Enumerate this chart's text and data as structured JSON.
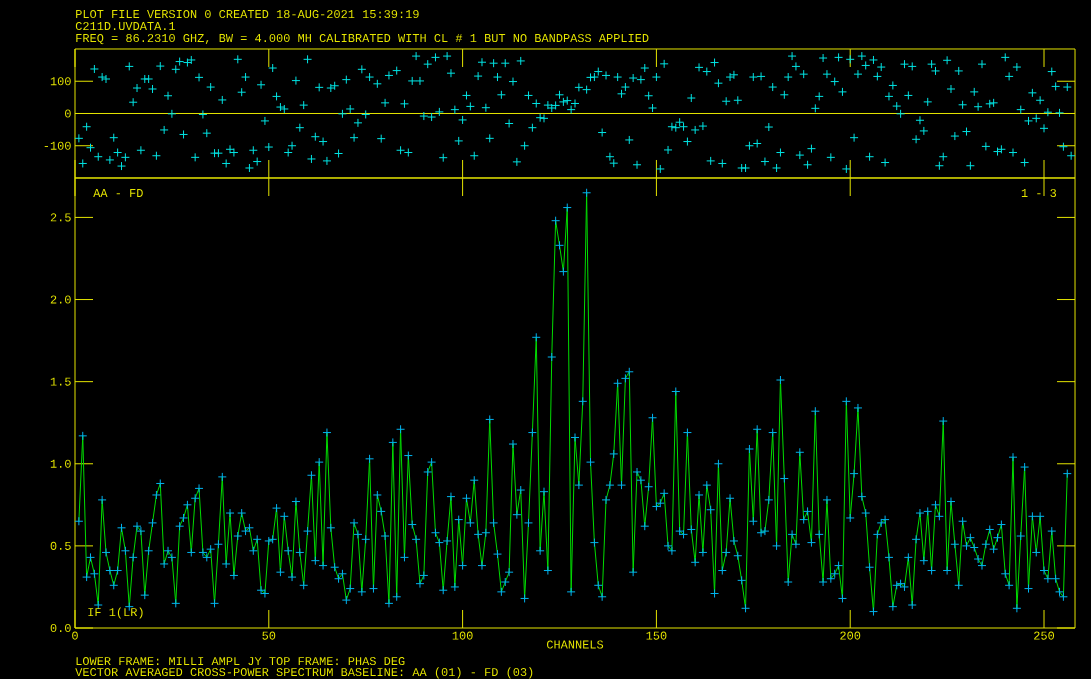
{
  "chart_data": [
    {
      "type": "scatter",
      "annotations": [
        "PLOT FILE VERSION 0 CREATED 18-AUG-2021 15:39:19",
        "C211D.UVDATA.1",
        "FREQ = 86.2310 GHZ, BW = 4.000 MH CALIBRATED WITH CL # 1 BUT NO BANDPASS APPLIED"
      ],
      "xlim": [
        0,
        258
      ],
      "ylim": [
        -200,
        200
      ],
      "xticks": [
        0,
        50,
        100,
        150,
        200,
        250
      ],
      "yticks": [
        -100,
        0,
        100
      ],
      "tick_labels": "y",
      "marker": "cross",
      "ref_lines": [
        {
          "axis": "y",
          "value": 0,
          "color": "#e6e600"
        }
      ],
      "color": "#00e5e5",
      "x": [
        1,
        2,
        3,
        4,
        5,
        6,
        7,
        8,
        9,
        10,
        11,
        12,
        13,
        14,
        15,
        16,
        17,
        18,
        19,
        20,
        21,
        22,
        23,
        24,
        25,
        26,
        27,
        28,
        29,
        30,
        31,
        32,
        33,
        34,
        35,
        36,
        37,
        38,
        39,
        40,
        41,
        42,
        43,
        44,
        45,
        46,
        47,
        48,
        49,
        50,
        51,
        52,
        53,
        54,
        55,
        56,
        57,
        58,
        59,
        60,
        61,
        62,
        63,
        64,
        65,
        66,
        67,
        68,
        69,
        70,
        71,
        72,
        73,
        74,
        75,
        76,
        78,
        79,
        80,
        81,
        83,
        84,
        85,
        86,
        87,
        88,
        89,
        90,
        91,
        92,
        93,
        94,
        95,
        96,
        97,
        98,
        99,
        100,
        101,
        102,
        103,
        104,
        105,
        106,
        107,
        108,
        109,
        110,
        111,
        112,
        113,
        114,
        115,
        116,
        117,
        118,
        119,
        120,
        121,
        122,
        123,
        124,
        125,
        126,
        127,
        128,
        129,
        130,
        132,
        133,
        134,
        135,
        136,
        137,
        138,
        139,
        140,
        141,
        142,
        143,
        144,
        145,
        146,
        147,
        148,
        149,
        150,
        151,
        152,
        153,
        154,
        155,
        156,
        157,
        158,
        159,
        160,
        161,
        162,
        163,
        164,
        165,
        166,
        167,
        168,
        169,
        170,
        171,
        172,
        173,
        174,
        175,
        176,
        177,
        178,
        179,
        180,
        181,
        182,
        183,
        184,
        185,
        186,
        187,
        188,
        189,
        190,
        191,
        192,
        193,
        194,
        195,
        196,
        197,
        198,
        199,
        200,
        201,
        202,
        203,
        204,
        205,
        206,
        207,
        208,
        209,
        210,
        211,
        212,
        213,
        214,
        215,
        216,
        217,
        218,
        219,
        220,
        221,
        222,
        223,
        224,
        225,
        226,
        227,
        228,
        229,
        230,
        231,
        232,
        233,
        234,
        235,
        236,
        237,
        238,
        239,
        240,
        241,
        242,
        243,
        244,
        245,
        246,
        247,
        248,
        249,
        250,
        251,
        252,
        253,
        254,
        255,
        256,
        257
      ],
      "values": [
        -77,
        -155,
        -41,
        -106,
        138,
        -134,
        113,
        107,
        -144,
        -75,
        -121,
        -163,
        -136,
        146,
        35,
        79,
        -114,
        107,
        107,
        76,
        -131,
        147,
        -51,
        55,
        -1,
        137,
        161,
        -65,
        158,
        166,
        -136,
        112,
        -3,
        -61,
        82,
        -123,
        -123,
        42,
        -155,
        -111,
        -121,
        168,
        66,
        113,
        -169,
        -114,
        -149,
        89,
        -23,
        -104,
        141,
        53,
        20,
        14,
        -121,
        -100,
        102,
        -44,
        26,
        168,
        -141,
        -72,
        81,
        -87,
        -147,
        79,
        86,
        -124,
        -1,
        105,
        14,
        -75,
        -29,
        137,
        -3,
        113,
        92,
        -78,
        33,
        118,
        133,
        -114,
        30,
        -121,
        101,
        178,
        101,
        -8,
        153,
        -11,
        174,
        5,
        -137,
        178,
        125,
        12,
        -85,
        -20,
        56,
        22,
        -131,
        116,
        159,
        18,
        -77,
        156,
        113,
        58,
        156,
        -31,
        99,
        -150,
        163,
        -100,
        56,
        -44,
        31,
        -13,
        -15,
        26,
        17,
        25,
        58,
        36,
        40,
        12,
        31,
        81,
        74,
        112,
        113,
        130,
        -59,
        118,
        -134,
        -154,
        113,
        61,
        82,
        -82,
        110,
        -159,
        105,
        141,
        55,
        17,
        113,
        -172,
        154,
        -113,
        -41,
        -44,
        -27,
        -41,
        -87,
        48,
        -51,
        143,
        -39,
        130,
        -147,
        158,
        94,
        -155,
        38,
        113,
        120,
        41,
        -169,
        -169,
        -100,
        113,
        -93,
        115,
        -149,
        -42,
        82,
        -169,
        -121,
        58,
        113,
        178,
        146,
        -129,
        122,
        -159,
        -109,
        16,
        53,
        172,
        122,
        -136,
        99,
        174,
        67,
        -172,
        168,
        -75,
        122,
        178,
        149,
        -134,
        166,
        115,
        144,
        -152,
        53,
        87,
        23,
        -1,
        153,
        56,
        146,
        -80,
        -21,
        -54,
        36,
        153,
        132,
        -162,
        -134,
        165,
        76,
        -70,
        132,
        27,
        -56,
        -162,
        67,
        21,
        153,
        -102,
        30,
        33,
        -118,
        -111,
        174,
        115,
        -121,
        144,
        12,
        -152,
        -23,
        64,
        -15,
        41,
        -46,
        4,
        130,
        84,
        2,
        -103,
        82,
        -131
      ]
    },
    {
      "type": "line",
      "xlabel": "CHANNELS",
      "annotations": [
        "AA - FD",
        "1 - 3",
        "IF 1(LR)",
        "LOWER FRAME: MILLI AMPL JY TOP FRAME: PHAS DEG",
        "VECTOR AVERAGED CROSS-POWER SPECTRUM BASELINE: AA (01) - FD (03)"
      ],
      "xlim": [
        0,
        258
      ],
      "ylim": [
        0,
        2.74
      ],
      "xticks": [
        0,
        50,
        100,
        150,
        200,
        250
      ],
      "yticks": [
        {
          "value": 0,
          "label": "0.0"
        },
        0.5,
        {
          "value": 1,
          "label": "1.0"
        },
        1.5,
        {
          "value": 2,
          "label": "2.0"
        },
        2.5
      ],
      "marker": "cross",
      "color": "#00dd00",
      "x": [
        1,
        2,
        3,
        4,
        5,
        6,
        7,
        8,
        9,
        10,
        11,
        12,
        13,
        14,
        15,
        16,
        17,
        18,
        19,
        20,
        21,
        22,
        23,
        24,
        25,
        26,
        27,
        28,
        29,
        30,
        31,
        32,
        33,
        34,
        35,
        36,
        37,
        38,
        39,
        40,
        41,
        42,
        43,
        44,
        45,
        46,
        47,
        48,
        49,
        50,
        51,
        52,
        53,
        54,
        55,
        56,
        57,
        58,
        59,
        60,
        61,
        62,
        63,
        64,
        65,
        66,
        67,
        68,
        69,
        70,
        71,
        72,
        73,
        74,
        75,
        76,
        77,
        78,
        79,
        80,
        81,
        82,
        83,
        84,
        85,
        86,
        87,
        88,
        89,
        90,
        91,
        92,
        93,
        94,
        95,
        96,
        97,
        98,
        99,
        100,
        101,
        102,
        103,
        104,
        105,
        106,
        107,
        108,
        109,
        110,
        111,
        112,
        113,
        114,
        115,
        116,
        117,
        118,
        119,
        120,
        121,
        122,
        123,
        124,
        125,
        126,
        127,
        128,
        129,
        130,
        131,
        132,
        133,
        134,
        135,
        136,
        137,
        138,
        139,
        140,
        141,
        142,
        143,
        144,
        145,
        146,
        147,
        148,
        149,
        150,
        151,
        152,
        153,
        154,
        155,
        156,
        157,
        158,
        159,
        160,
        161,
        162,
        163,
        164,
        165,
        166,
        167,
        168,
        169,
        170,
        171,
        172,
        173,
        174,
        175,
        176,
        177,
        178,
        179,
        180,
        181,
        182,
        183,
        184,
        185,
        186,
        187,
        188,
        189,
        190,
        191,
        192,
        193,
        194,
        195,
        196,
        197,
        198,
        199,
        200,
        201,
        202,
        203,
        204,
        205,
        206,
        207,
        208,
        209,
        210,
        211,
        212,
        213,
        214,
        215,
        216,
        217,
        218,
        219,
        220,
        221,
        222,
        223,
        224,
        225,
        226,
        227,
        228,
        229,
        230,
        231,
        232,
        233,
        234,
        235,
        236,
        237,
        238,
        239,
        240,
        241,
        242,
        243,
        244,
        245,
        246,
        247,
        248,
        249,
        250,
        251,
        252,
        253,
        254,
        255,
        256
      ],
      "values": [
        0.65,
        1.17,
        0.31,
        0.43,
        0.33,
        0.14,
        0.78,
        0.46,
        0.35,
        0.26,
        0.35,
        0.61,
        0.47,
        0.13,
        0.43,
        0.62,
        0.59,
        0.2,
        0.47,
        0.64,
        0.81,
        0.88,
        0.39,
        0.47,
        0.43,
        0.15,
        0.62,
        0.67,
        0.75,
        0.46,
        0.79,
        0.85,
        0.46,
        0.43,
        0.48,
        0.15,
        0.51,
        0.92,
        0.39,
        0.7,
        0.32,
        0.56,
        0.7,
        0.59,
        0.61,
        0.47,
        0.54,
        0.23,
        0.21,
        0.53,
        0.54,
        0.73,
        0.34,
        0.68,
        0.47,
        0.31,
        0.77,
        0.46,
        0.26,
        0.59,
        0.93,
        0.41,
        1.01,
        0.38,
        1.19,
        0.61,
        0.37,
        0.3,
        0.33,
        0.17,
        0.24,
        0.64,
        0.57,
        0.22,
        0.54,
        1.03,
        0.24,
        0.81,
        0.71,
        0.56,
        0.15,
        1.13,
        0.19,
        1.21,
        0.43,
        1.05,
        0.63,
        0.54,
        0.27,
        0.32,
        0.95,
        1.01,
        0.58,
        0.52,
        0.23,
        0.53,
        0.8,
        0.25,
        0.66,
        0.38,
        0.79,
        0.64,
        0.9,
        0.57,
        0.38,
        0.58,
        1.27,
        0.64,
        0.45,
        0.22,
        0.28,
        0.34,
        1.12,
        0.69,
        0.84,
        0.18,
        0.64,
        1.19,
        1.77,
        0.47,
        0.83,
        0.35,
        1.65,
        2.48,
        2.33,
        2.17,
        2.56,
        0.22,
        1.16,
        0.87,
        1.38,
        2.65,
        1.01,
        0.52,
        0.26,
        0.19,
        0.78,
        0.87,
        1.06,
        1.49,
        0.87,
        1.52,
        1.56,
        0.34,
        0.95,
        0.9,
        0.62,
        0.86,
        1.28,
        0.74,
        0.76,
        0.82,
        0.5,
        0.47,
        1.44,
        0.59,
        0.57,
        1.19,
        0.6,
        0.4,
        0.81,
        0.46,
        0.87,
        0.72,
        0.21,
        1.0,
        0.35,
        0.46,
        0.79,
        0.53,
        0.44,
        0.29,
        0.12,
        1.09,
        0.65,
        1.21,
        0.58,
        0.59,
        0.78,
        1.19,
        0.5,
        1.51,
        0.91,
        0.28,
        0.57,
        0.51,
        1.07,
        0.66,
        0.71,
        0.52,
        1.32,
        0.57,
        0.28,
        0.78,
        0.3,
        0.33,
        0.38,
        0.18,
        1.38,
        0.67,
        0.94,
        1.34,
        0.8,
        0.7,
        0.37,
        0.1,
        0.57,
        0.64,
        0.66,
        0.43,
        0.13,
        0.26,
        0.27,
        0.25,
        0.43,
        0.14,
        0.54,
        0.7,
        0.41,
        0.71,
        0.35,
        0.75,
        0.68,
        1.26,
        0.35,
        0.77,
        0.51,
        0.26,
        0.65,
        0.5,
        0.55,
        0.49,
        0.42,
        0.38,
        0.51,
        0.6,
        0.48,
        0.55,
        0.63,
        0.33,
        0.26,
        1.04,
        0.12,
        0.56,
        0.98,
        0.24,
        0.68,
        0.46,
        0.68,
        0.35,
        0.3,
        0.59,
        0.3,
        0.22,
        0.19,
        0.94
      ]
    }
  ]
}
